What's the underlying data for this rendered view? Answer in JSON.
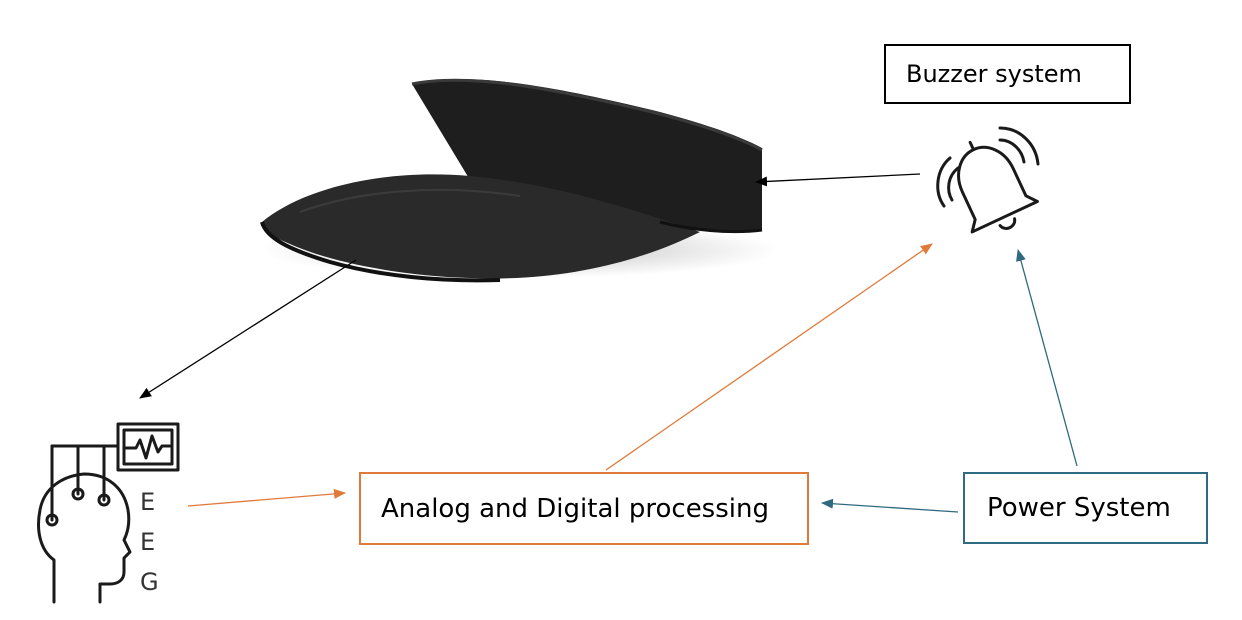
{
  "nodes": {
    "buzzer": {
      "label": "Buzzer system"
    },
    "processing": {
      "label": "Analog and Digital processing"
    },
    "power": {
      "label": "Power System"
    },
    "eeg": {
      "letters": [
        "E",
        "E",
        "G"
      ]
    }
  },
  "colors": {
    "black_arrow": "#000000",
    "orange": "#E07A3A",
    "blue": "#2F6A80",
    "visor": "#1e1e1e"
  },
  "icons": [
    "visor-cap-icon",
    "ringing-bell-icon",
    "eeg-head-icon",
    "eeg-monitor-icon"
  ]
}
